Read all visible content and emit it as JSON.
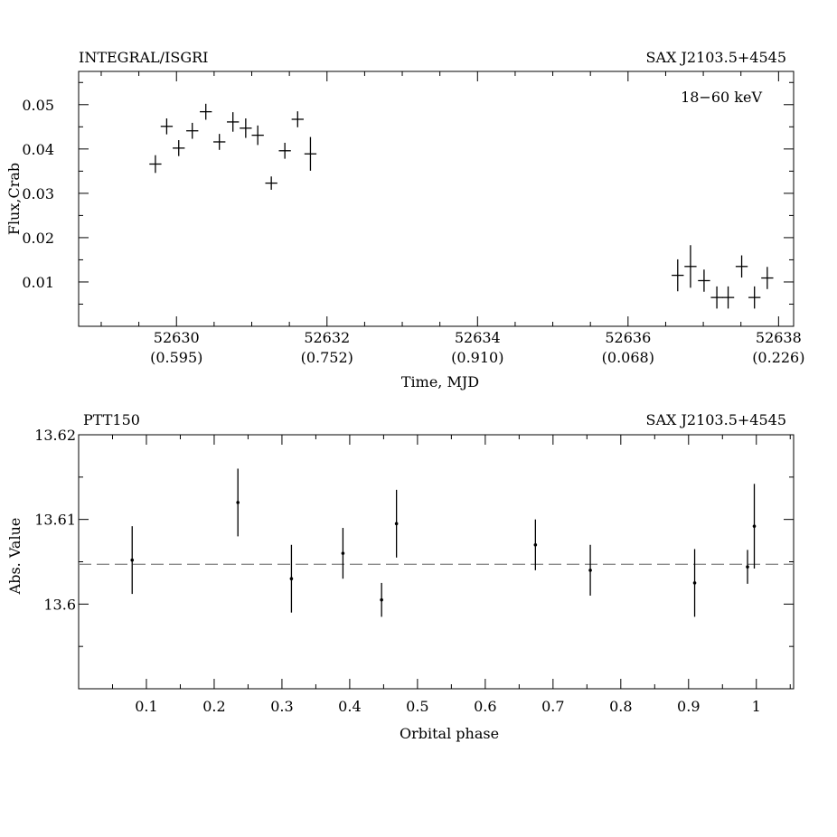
{
  "chart_data": [
    {
      "type": "scatter",
      "left_title": "INTEGRAL/ISGRI",
      "right_title": "SAX J2103.5+4545",
      "annotation": "18−60 keV",
      "xlabel": "Time, MJD",
      "ylabel": "Flux,Crab",
      "xlim": [
        52628.7,
        52638.2
      ],
      "ylim": [
        0.0,
        0.0575
      ],
      "x_ticks": [
        52630,
        52632,
        52634,
        52636,
        52638
      ],
      "x_tick_labels": [
        "52630",
        "52632",
        "52634",
        "52636",
        "52638"
      ],
      "x_tick_phase_labels": [
        "(0.595)",
        "(0.752)",
        "(0.910)",
        "(0.068)",
        "(0.226)"
      ],
      "y_ticks": [
        0.01,
        0.02,
        0.03,
        0.04,
        0.05
      ],
      "y_tick_labels": [
        "0.01",
        "0.02",
        "0.03",
        "0.04",
        "0.05"
      ],
      "series": [
        {
          "marker": "cross",
          "points": [
            {
              "x": 52629.72,
              "y": 0.0366,
              "xerr": 0.08,
              "yerr": 0.002
            },
            {
              "x": 52629.87,
              "y": 0.0451,
              "xerr": 0.08,
              "yerr": 0.0018
            },
            {
              "x": 52630.03,
              "y": 0.0402,
              "xerr": 0.08,
              "yerr": 0.0018
            },
            {
              "x": 52630.21,
              "y": 0.0441,
              "xerr": 0.08,
              "yerr": 0.0018
            },
            {
              "x": 52630.39,
              "y": 0.0484,
              "xerr": 0.08,
              "yerr": 0.0018
            },
            {
              "x": 52630.57,
              "y": 0.0416,
              "xerr": 0.08,
              "yerr": 0.0018
            },
            {
              "x": 52630.75,
              "y": 0.0461,
              "xerr": 0.08,
              "yerr": 0.0022
            },
            {
              "x": 52630.92,
              "y": 0.0447,
              "xerr": 0.08,
              "yerr": 0.0022
            },
            {
              "x": 52631.08,
              "y": 0.0431,
              "xerr": 0.08,
              "yerr": 0.0022
            },
            {
              "x": 52631.26,
              "y": 0.0323,
              "xerr": 0.08,
              "yerr": 0.0015
            },
            {
              "x": 52631.44,
              "y": 0.0396,
              "xerr": 0.08,
              "yerr": 0.0018
            },
            {
              "x": 52631.61,
              "y": 0.0467,
              "xerr": 0.08,
              "yerr": 0.0018
            },
            {
              "x": 52631.78,
              "y": 0.0389,
              "xerr": 0.08,
              "yerr": 0.0038
            },
            {
              "x": 52636.66,
              "y": 0.0115,
              "xerr": 0.08,
              "yerr": 0.0036
            },
            {
              "x": 52636.83,
              "y": 0.0135,
              "xerr": 0.08,
              "yerr": 0.0048
            },
            {
              "x": 52637.01,
              "y": 0.0103,
              "xerr": 0.08,
              "yerr": 0.0025
            },
            {
              "x": 52637.18,
              "y": 0.0065,
              "xerr": 0.08,
              "yerr": 0.0025
            },
            {
              "x": 52637.33,
              "y": 0.0065,
              "xerr": 0.08,
              "yerr": 0.0025
            },
            {
              "x": 52637.51,
              "y": 0.0135,
              "xerr": 0.08,
              "yerr": 0.0025
            },
            {
              "x": 52637.68,
              "y": 0.0065,
              "xerr": 0.08,
              "yerr": 0.0025
            },
            {
              "x": 52637.85,
              "y": 0.0109,
              "xerr": 0.08,
              "yerr": 0.0025
            }
          ]
        }
      ]
    },
    {
      "type": "scatter",
      "left_title": "PTT150",
      "right_title": "SAX J2103.5+4545",
      "xlabel": "Orbital phase",
      "ylabel": "Abs. Value",
      "xlim": [
        0.0,
        1.055
      ],
      "ylim": [
        13.59,
        13.62
      ],
      "x_ticks": [
        0.1,
        0.2,
        0.3,
        0.4,
        0.5,
        0.6,
        0.7,
        0.8,
        0.9,
        1.0
      ],
      "x_tick_labels": [
        "0.1",
        "0.2",
        "0.3",
        "0.4",
        "0.5",
        "0.6",
        "0.7",
        "0.8",
        "0.9",
        "1"
      ],
      "y_ticks": [
        13.6,
        13.61,
        13.62
      ],
      "y_tick_labels": [
        "13.6",
        "13.61",
        "13.62"
      ],
      "reference_line": {
        "y": 13.6047,
        "style": "dashed",
        "color": "#8a8a8a"
      },
      "series": [
        {
          "marker": "dot",
          "points": [
            {
              "x": 0.079,
              "y": 13.6052,
              "yerr": 0.004
            },
            {
              "x": 0.235,
              "y": 13.612,
              "yerr": 0.004
            },
            {
              "x": 0.314,
              "y": 13.603,
              "yerr": 0.004
            },
            {
              "x": 0.39,
              "y": 13.606,
              "yerr": 0.003
            },
            {
              "x": 0.447,
              "y": 13.6005,
              "yerr": 0.002
            },
            {
              "x": 0.469,
              "y": 13.6095,
              "yerr": 0.004
            },
            {
              "x": 0.674,
              "y": 13.607,
              "yerr": 0.003
            },
            {
              "x": 0.755,
              "y": 13.604,
              "yerr": 0.003
            },
            {
              "x": 0.909,
              "y": 13.6025,
              "yerr": 0.004
            },
            {
              "x": 0.987,
              "y": 13.6044,
              "yerr": 0.002
            },
            {
              "x": 0.997,
              "y": 13.6092,
              "yerr": 0.005
            }
          ]
        }
      ]
    }
  ]
}
